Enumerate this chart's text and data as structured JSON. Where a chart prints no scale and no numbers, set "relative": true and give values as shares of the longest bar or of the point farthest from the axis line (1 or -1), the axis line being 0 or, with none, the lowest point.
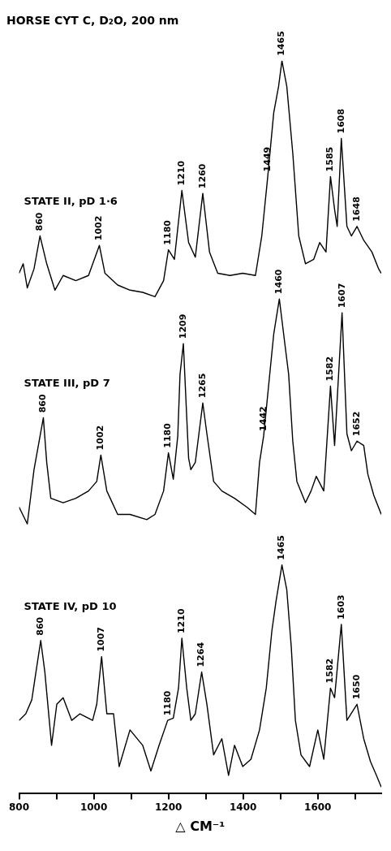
{
  "chart_data": {
    "type": "line",
    "title": "HORSE CYT C, D₂O, 200 nm",
    "xlabel": "△ CM⁻¹",
    "relative": true,
    "xlim": [
      800,
      1770
    ],
    "xticks": [
      800,
      {
        "value": 900,
        "label": null
      },
      1000,
      {
        "value": 1100,
        "label": null
      },
      1200,
      {
        "value": 1300,
        "label": null
      },
      1400,
      {
        "value": 1500,
        "label": null
      },
      1600,
      {
        "value": 1700,
        "label": null
      }
    ],
    "series": [
      {
        "color": "#000000",
        "x": [
          800,
          811,
          822,
          840,
          856,
          874,
          896,
          918,
          952,
          986,
          1015,
          1030,
          1064,
          1097,
          1131,
          1164,
          1187,
          1200,
          1216,
          1236,
          1254,
          1272,
          1292,
          1310,
          1332,
          1365,
          1399,
          1433,
          1450,
          1466,
          1482,
          1495,
          1504,
          1517,
          1533,
          1549,
          1567,
          1589,
          1605,
          1622,
          1634,
          1645,
          1652,
          1663,
          1678,
          1690,
          1705,
          1723,
          1745,
          1763,
          1770
        ],
        "values": [
          0.71,
          0.723,
          0.69,
          0.716,
          0.761,
          0.723,
          0.687,
          0.707,
          0.7,
          0.707,
          0.748,
          0.71,
          0.694,
          0.687,
          0.684,
          0.678,
          0.7,
          0.742,
          0.729,
          0.823,
          0.752,
          0.732,
          0.819,
          0.739,
          0.71,
          0.707,
          0.71,
          0.707,
          0.761,
          0.842,
          0.929,
          0.965,
          1,
          0.965,
          0.874,
          0.761,
          0.723,
          0.729,
          0.752,
          0.739,
          0.842,
          0.797,
          0.774,
          0.894,
          0.774,
          0.761,
          0.774,
          0.755,
          0.739,
          0.716,
          0.71
        ]
      },
      {
        "color": "#000000",
        "x": [
          800,
          822,
          840,
          865,
          874,
          885,
          918,
          952,
          986,
          1008,
          1019,
          1035,
          1064,
          1097,
          1142,
          1164,
          1187,
          1200,
          1213,
          1225,
          1231,
          1240,
          1254,
          1260,
          1272,
          1292,
          1303,
          1321,
          1343,
          1377,
          1410,
          1433,
          1444,
          1455,
          1473,
          1482,
          1497,
          1511,
          1522,
          1533,
          1544,
          1567,
          1582,
          1596,
          1616,
          1634,
          1645,
          1665,
          1678,
          1690,
          1705,
          1723,
          1734,
          1750,
          1770
        ],
        "values": [
          0.391,
          0.368,
          0.442,
          0.513,
          0.452,
          0.403,
          0.397,
          0.403,
          0.413,
          0.426,
          0.462,
          0.413,
          0.381,
          0.381,
          0.374,
          0.381,
          0.413,
          0.465,
          0.429,
          0.488,
          0.572,
          0.614,
          0.458,
          0.442,
          0.452,
          0.533,
          0.491,
          0.426,
          0.413,
          0.403,
          0.391,
          0.381,
          0.452,
          0.488,
          0.581,
          0.627,
          0.675,
          0.617,
          0.572,
          0.481,
          0.426,
          0.397,
          0.413,
          0.433,
          0.413,
          0.556,
          0.475,
          0.656,
          0.491,
          0.468,
          0.481,
          0.475,
          0.436,
          0.407,
          0.381
        ]
      },
      {
        "color": "#000000",
        "x": [
          800,
          818,
          834,
          847,
          858,
          869,
          887,
          901,
          918,
          941,
          963,
          997,
          1008,
          1021,
          1035,
          1053,
          1068,
          1097,
          1131,
          1153,
          1175,
          1198,
          1213,
          1227,
          1236,
          1249,
          1260,
          1272,
          1289,
          1303,
          1321,
          1343,
          1361,
          1377,
          1399,
          1421,
          1444,
          1462,
          1477,
          1488,
          1504,
          1517,
          1529,
          1540,
          1555,
          1578,
          1600,
          1616,
          1634,
          1645,
          1663,
          1678,
          1705,
          1723,
          1741,
          1757,
          1770
        ],
        "values": [
          0.1,
          0.109,
          0.128,
          0.172,
          0.209,
          0.166,
          0.066,
          0.122,
          0.131,
          0.1,
          0.109,
          0.1,
          0.122,
          0.187,
          0.109,
          0.109,
          0.037,
          0.087,
          0.066,
          0.031,
          0.066,
          0.1,
          0.103,
          0.144,
          0.212,
          0.144,
          0.1,
          0.109,
          0.166,
          0.122,
          0.053,
          0.075,
          0.025,
          0.066,
          0.037,
          0.047,
          0.087,
          0.144,
          0.222,
          0.262,
          0.312,
          0.278,
          0.2,
          0.1,
          0.053,
          0.037,
          0.087,
          0.047,
          0.144,
          0.131,
          0.231,
          0.1,
          0.122,
          0.075,
          0.044,
          0.025,
          0.009
        ]
      }
    ],
    "annotations": [
      "STATE II, pD 1·6",
      "STATE III, pD 7",
      "STATE IV, pD 10",
      {
        "text": "860",
        "x": 856,
        "y": 0.761
      },
      {
        "text": "1002",
        "x": 1015,
        "y": 0.748
      },
      {
        "text": "1180",
        "x": 1200,
        "y": 0.742
      },
      {
        "text": "1210",
        "x": 1236,
        "y": 0.823
      },
      {
        "text": "1260",
        "x": 1292,
        "y": 0.819
      },
      {
        "text": "1449",
        "x": 1466,
        "y": 0.842
      },
      {
        "text": "1465",
        "x": 1504,
        "y": 1
      },
      {
        "text": "1585",
        "x": 1634,
        "y": 0.842
      },
      {
        "text": "1608",
        "x": 1663,
        "y": 0.894
      },
      {
        "text": "1648",
        "x": 1705,
        "y": 0.774
      },
      {
        "text": "860",
        "x": 865,
        "y": 0.513
      },
      {
        "text": "1002",
        "x": 1019,
        "y": 0.462
      },
      {
        "text": "1180",
        "x": 1200,
        "y": 0.465
      },
      {
        "text": "1209",
        "x": 1240,
        "y": 0.614
      },
      {
        "text": "1265",
        "x": 1292,
        "y": 0.533
      },
      {
        "text": "1442",
        "x": 1455,
        "y": 0.488
      },
      {
        "text": "1460",
        "x": 1497,
        "y": 0.675
      },
      {
        "text": "1582",
        "x": 1634,
        "y": 0.556
      },
      {
        "text": "1607",
        "x": 1665,
        "y": 0.656
      },
      {
        "text": "1652",
        "x": 1705,
        "y": 0.481
      },
      {
        "text": "860",
        "x": 858,
        "y": 0.209
      },
      {
        "text": "1007",
        "x": 1021,
        "y": 0.187
      },
      {
        "text": "1180",
        "x": 1198,
        "y": 0.1
      },
      {
        "text": "1210",
        "x": 1236,
        "y": 0.212
      },
      {
        "text": "1264",
        "x": 1289,
        "y": 0.166
      },
      {
        "text": "1465",
        "x": 1504,
        "y": 0.312
      },
      {
        "text": "1582",
        "x": 1634,
        "y": 0.144
      },
      {
        "text": "1603",
        "x": 1663,
        "y": 0.231
      },
      {
        "text": "1650",
        "x": 1705,
        "y": 0.122
      }
    ]
  }
}
